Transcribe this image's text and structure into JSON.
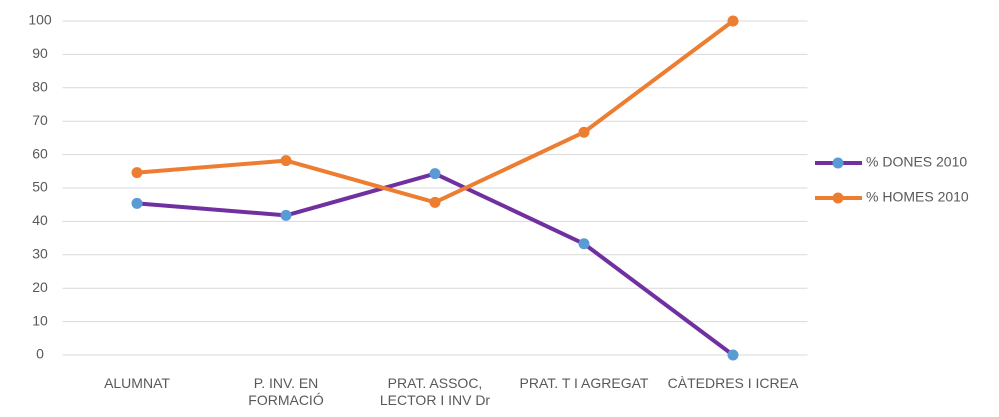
{
  "chart_data": {
    "type": "line",
    "categories": [
      "ALUMNAT",
      "P. INV. EN FORMACIÓ",
      "PRAT. ASSOC, LECTOR I INV Dr",
      "PRAT. T I AGREGAT",
      "CÀTEDRES I ICREA"
    ],
    "series": [
      {
        "name": "% DONES 2010",
        "color": "#7030a0",
        "marker_color": "#5b9bd5",
        "values": [
          45.4,
          41.8,
          54.3,
          33.3,
          0
        ]
      },
      {
        "name": "% HOMES 2010",
        "color": "#ed7d31",
        "marker_color": "#ed7d31",
        "values": [
          54.6,
          58.2,
          45.7,
          66.7,
          100
        ]
      }
    ],
    "ylim": [
      0,
      100
    ],
    "yticks": [
      0,
      10,
      20,
      30,
      40,
      50,
      60,
      70,
      80,
      90,
      100
    ],
    "grid": true,
    "legend": "right"
  }
}
